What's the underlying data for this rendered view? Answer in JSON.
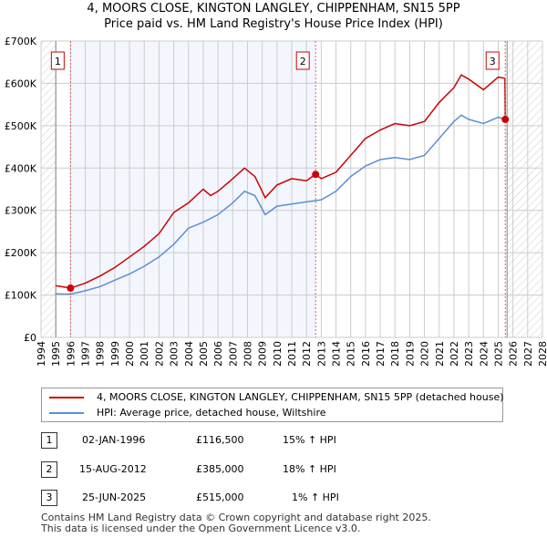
{
  "title": "4, MOORS CLOSE, KINGTON LANGLEY, CHIPPENHAM, SN15 5PP",
  "subtitle": "Price paid vs. HM Land Registry's House Price Index (HPI)",
  "chart_data": {
    "type": "line",
    "xlim": [
      1994,
      2028
    ],
    "ylim": [
      0,
      700000
    ],
    "x_ticks": [
      "1994",
      "1995",
      "1996",
      "1997",
      "1998",
      "1999",
      "2000",
      "2001",
      "2002",
      "2003",
      "2004",
      "2005",
      "2006",
      "2007",
      "2008",
      "2009",
      "2010",
      "2011",
      "2012",
      "2013",
      "2014",
      "2015",
      "2016",
      "2017",
      "2018",
      "2019",
      "2020",
      "2021",
      "2022",
      "2023",
      "2024",
      "2025",
      "2026",
      "2027",
      "2028"
    ],
    "y_ticks": [
      {
        "v": 0,
        "label": "£0"
      },
      {
        "v": 100000,
        "label": "£100K"
      },
      {
        "v": 200000,
        "label": "£200K"
      },
      {
        "v": 300000,
        "label": "£300K"
      },
      {
        "v": 400000,
        "label": "£400K"
      },
      {
        "v": 500000,
        "label": "£500K"
      },
      {
        "v": 600000,
        "label": "£600K"
      },
      {
        "v": 700000,
        "label": "£700K"
      }
    ],
    "series": [
      {
        "name": "4, MOORS CLOSE, KINGTON LANGLEY, CHIPPENHAM, SN15 5PP (detached house)",
        "color": "#cc0000",
        "x": [
          1995,
          1996,
          1997,
          1998,
          1999,
          2000,
          2001,
          2002,
          2003,
          2004,
          2005,
          2005.5,
          2006,
          2007,
          2007.8,
          2008.5,
          2009.2,
          2010,
          2011,
          2012,
          2012.6,
          2013,
          2014,
          2015,
          2016,
          2017,
          2018,
          2019,
          2020,
          2021,
          2022,
          2022.5,
          2023,
          2024,
          2025,
          2025.45,
          2025.48
        ],
        "y": [
          122000,
          116500,
          128000,
          145000,
          165000,
          190000,
          215000,
          245000,
          295000,
          318000,
          350000,
          335000,
          345000,
          375000,
          400000,
          380000,
          330000,
          360000,
          375000,
          370000,
          385000,
          375000,
          390000,
          430000,
          470000,
          490000,
          505000,
          500000,
          510000,
          555000,
          590000,
          620000,
          610000,
          585000,
          615000,
          612000,
          515000
        ]
      },
      {
        "name": "HPI: Average price, detached house, Wiltshire",
        "color": "#5b8fd4",
        "x": [
          1995,
          1996,
          1997,
          1998,
          1999,
          2000,
          2001,
          2002,
          2003,
          2004,
          2005,
          2006,
          2007,
          2007.8,
          2008.5,
          2009.2,
          2010,
          2011,
          2012,
          2013,
          2014,
          2015,
          2016,
          2017,
          2018,
          2019,
          2020,
          2021,
          2022,
          2022.5,
          2023,
          2024,
          2025,
          2025.5
        ],
        "y": [
          103000,
          102000,
          110000,
          120000,
          135000,
          150000,
          168000,
          190000,
          220000,
          258000,
          272000,
          290000,
          318000,
          345000,
          335000,
          290000,
          310000,
          315000,
          320000,
          325000,
          345000,
          380000,
          405000,
          420000,
          425000,
          420000,
          430000,
          470000,
          510000,
          525000,
          515000,
          505000,
          520000,
          515000
        ]
      }
    ],
    "sales": [
      {
        "label": "1",
        "x": 1996.0,
        "y": 116500
      },
      {
        "label": "2",
        "x": 2012.62,
        "y": 385000
      },
      {
        "label": "3",
        "x": 2025.48,
        "y": 515000
      }
    ]
  },
  "legend": [
    {
      "label": "4, MOORS CLOSE, KINGTON LANGLEY, CHIPPENHAM, SN15 5PP (detached house)",
      "color": "#cc0000"
    },
    {
      "label": "HPI: Average price, detached house, Wiltshire",
      "color": "#5b8fd4"
    }
  ],
  "table": [
    {
      "num": "1",
      "date": "02-JAN-1996",
      "price": "£116,500",
      "hpi": "15% ↑ HPI"
    },
    {
      "num": "2",
      "date": "15-AUG-2012",
      "price": "£385,000",
      "hpi": "18% ↑ HPI"
    },
    {
      "num": "3",
      "date": "25-JUN-2025",
      "price": "£515,000",
      "hpi": "1% ↑ HPI"
    }
  ],
  "footer": [
    "Contains HM Land Registry data © Crown copyright and database right 2025.",
    "This data is licensed under the Open Government Licence v3.0."
  ]
}
